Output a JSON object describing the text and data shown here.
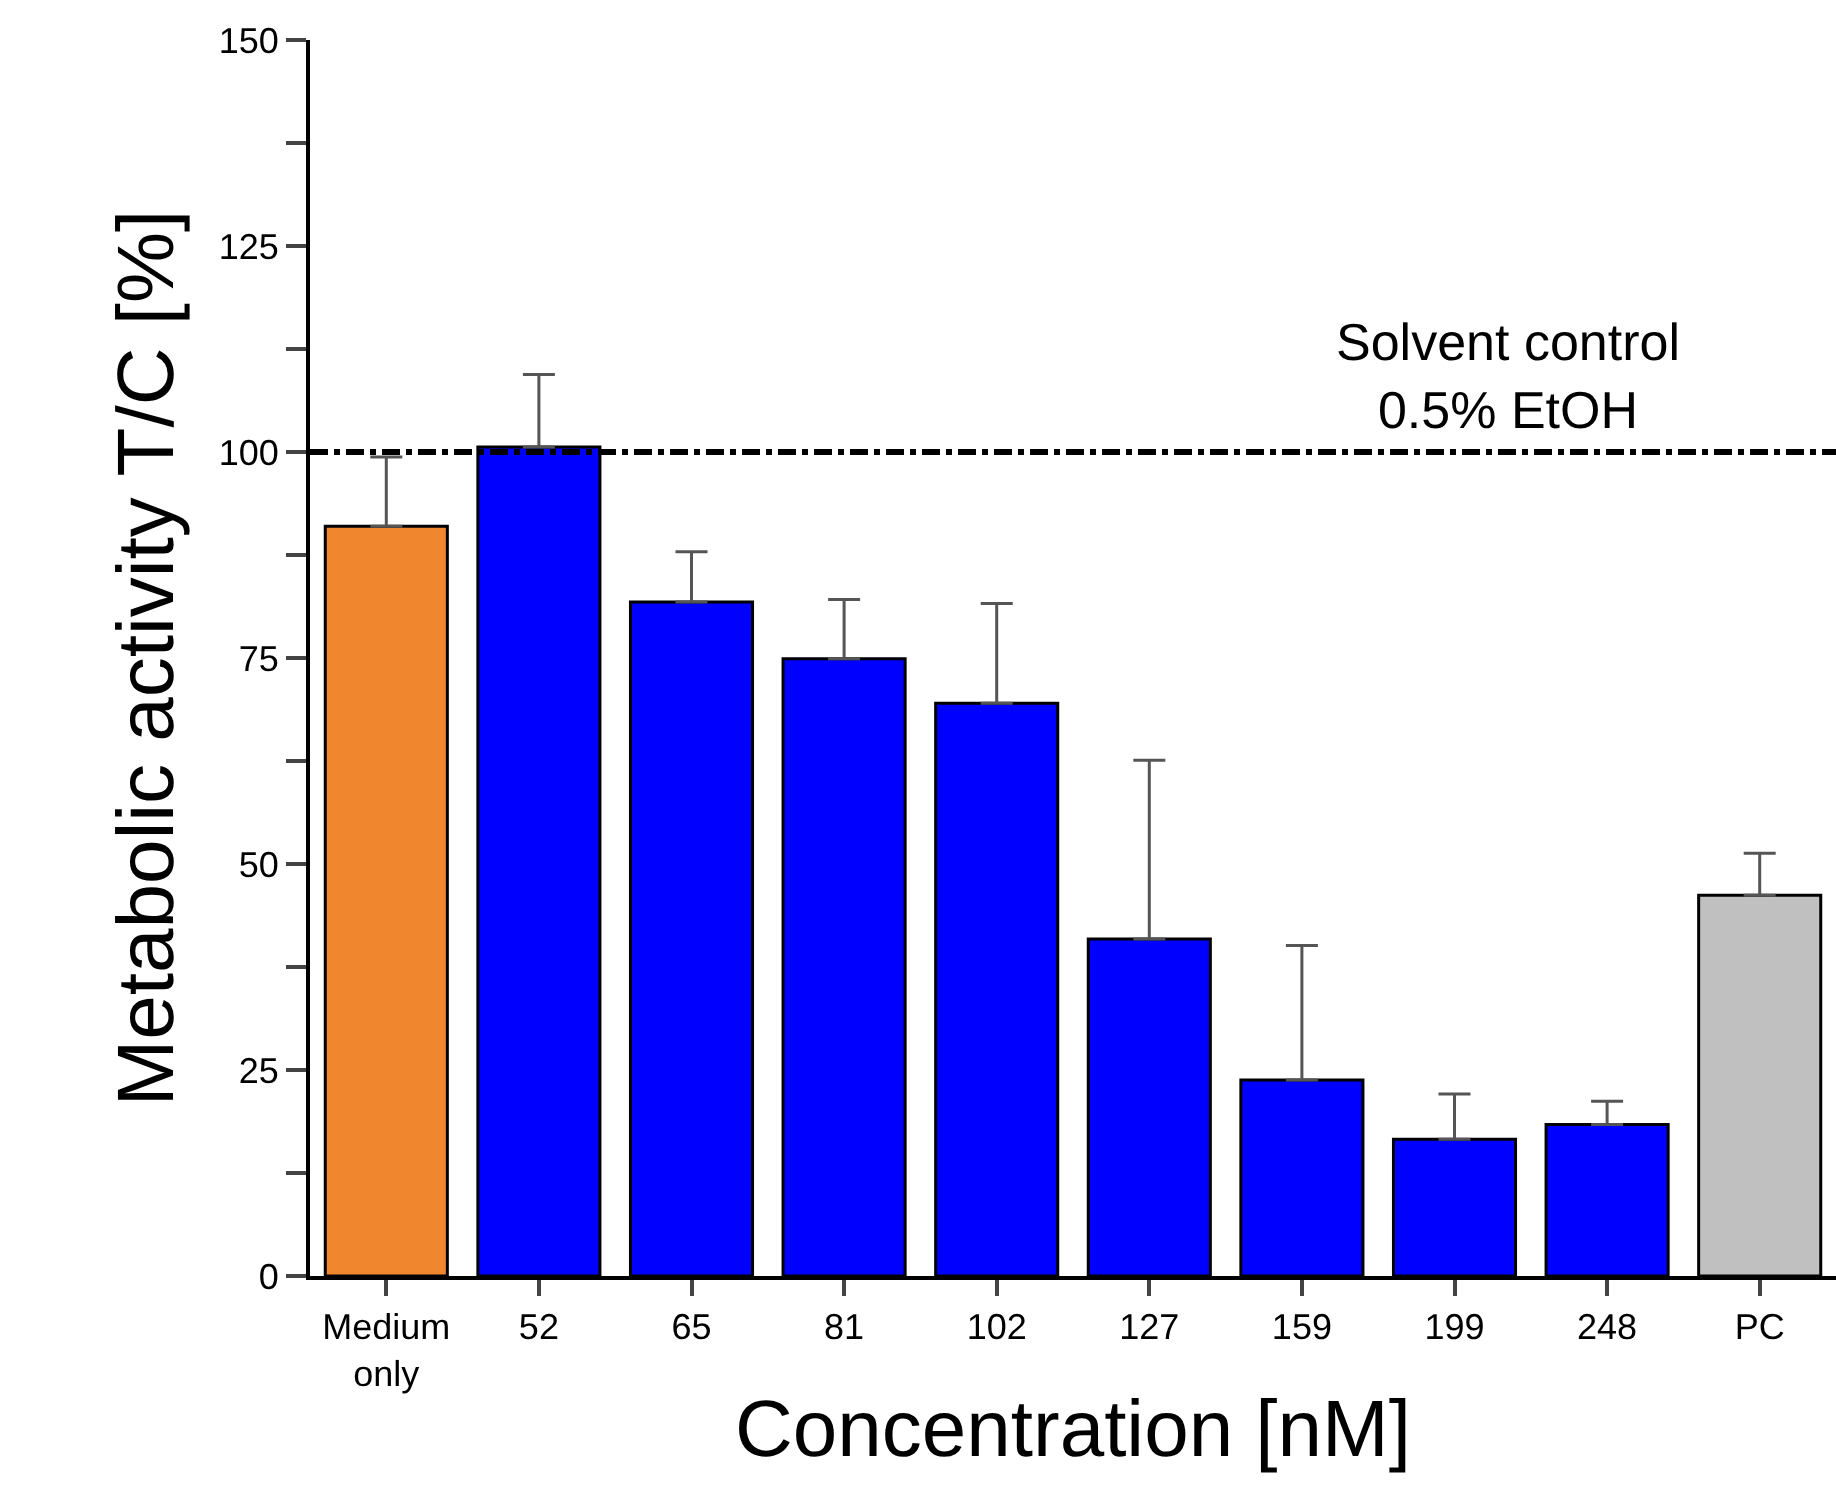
{
  "chart_data": {
    "type": "bar",
    "xlabel": "Concentration [nM]",
    "ylabel": "Metabolic activity T/C [%]",
    "categories": [
      "Medium\nonly",
      "52",
      "65",
      "81",
      "102",
      "127",
      "159",
      "199",
      "248",
      "PC"
    ],
    "values": [
      91.0,
      100.6,
      81.8,
      74.9,
      69.5,
      40.9,
      23.8,
      16.6,
      18.4,
      46.2
    ],
    "colors": [
      "#f0862d",
      "#0000ff",
      "#0000ff",
      "#0000ff",
      "#0000ff",
      "#0000ff",
      "#0000ff",
      "#0000ff",
      "#0000ff",
      "#c0c0c0"
    ],
    "errors": [
      [
        91.0,
        99.4
      ],
      [
        100.6,
        109.4
      ],
      [
        81.8,
        87.9
      ],
      [
        74.9,
        82.1
      ],
      [
        69.5,
        81.6
      ],
      [
        40.9,
        62.6
      ],
      [
        23.8,
        40.1
      ],
      [
        16.6,
        22.1
      ],
      [
        18.4,
        21.2
      ],
      [
        46.2,
        51.3
      ]
    ],
    "ylim": [
      0,
      150
    ],
    "yticks": [
      0,
      {
        "value": 12.5,
        "label": null
      },
      25,
      {
        "value": 37.5,
        "label": null
      },
      50,
      {
        "value": 62.5,
        "label": null
      },
      75,
      {
        "value": 87.5,
        "label": null
      },
      100,
      {
        "value": 112.5,
        "label": null
      },
      125,
      {
        "value": 137.5,
        "label": null
      },
      150
    ],
    "ref_lines": [
      {
        "axis": "y",
        "value": 100,
        "label": "Solvent control\n0.5% EtOH",
        "color": "#000000",
        "line_style": "dashdot"
      }
    ]
  }
}
